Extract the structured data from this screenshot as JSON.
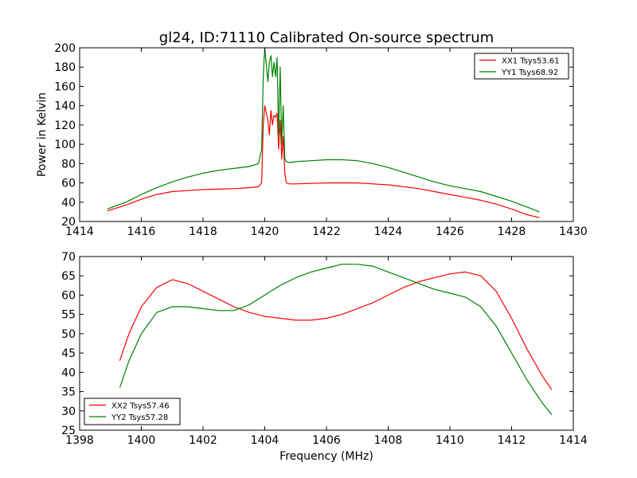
{
  "chart_data": [
    {
      "type": "line",
      "title": "gl24, ID:71110 Calibrated On-source spectrum",
      "xlabel": "",
      "ylabel": "Power in Kelvin",
      "xlim": [
        1414,
        1430
      ],
      "ylim": [
        20,
        200
      ],
      "xticks": [
        1414,
        1416,
        1418,
        1420,
        1422,
        1424,
        1426,
        1428,
        1430
      ],
      "yticks": [
        20,
        40,
        60,
        80,
        100,
        120,
        140,
        160,
        180,
        200
      ],
      "grid": false,
      "legend_position": "top-right",
      "series": [
        {
          "name": "XX1 Tsys53.61",
          "color": "#ff0000",
          "x": [
            1414.9,
            1415.5,
            1416.0,
            1416.5,
            1417.0,
            1417.5,
            1418.0,
            1418.5,
            1419.0,
            1419.5,
            1419.8,
            1419.9,
            1419.95,
            1420.0,
            1420.1,
            1420.15,
            1420.2,
            1420.25,
            1420.3,
            1420.35,
            1420.4,
            1420.45,
            1420.5,
            1420.55,
            1420.6,
            1420.65,
            1420.7,
            1420.8,
            1421.0,
            1421.5,
            1422.0,
            1422.5,
            1423.0,
            1423.5,
            1424.0,
            1424.5,
            1425.0,
            1425.5,
            1426.0,
            1426.5,
            1427.0,
            1427.5,
            1428.0,
            1428.5,
            1428.9
          ],
          "y": [
            31,
            37,
            43,
            48,
            51,
            52,
            53,
            53.5,
            54,
            55,
            56,
            60,
            120,
            140,
            125,
            110,
            135,
            120,
            130,
            128,
            132,
            95,
            125,
            85,
            108,
            70,
            60,
            59,
            59,
            59.5,
            60,
            60,
            60,
            59,
            58,
            56,
            54,
            51,
            48,
            45,
            42,
            38,
            33,
            27,
            24
          ]
        },
        {
          "name": "YY1 Tsys68.92",
          "color": "#008000",
          "x": [
            1414.9,
            1415.5,
            1416.0,
            1416.5,
            1417.0,
            1417.5,
            1418.0,
            1418.5,
            1419.0,
            1419.5,
            1419.8,
            1419.9,
            1419.95,
            1420.0,
            1420.1,
            1420.15,
            1420.2,
            1420.25,
            1420.3,
            1420.35,
            1420.4,
            1420.45,
            1420.5,
            1420.55,
            1420.6,
            1420.65,
            1420.7,
            1420.8,
            1421.0,
            1421.5,
            1422.0,
            1422.5,
            1423.0,
            1423.5,
            1424.0,
            1424.5,
            1425.0,
            1425.5,
            1426.0,
            1426.5,
            1427.0,
            1427.5,
            1428.0,
            1428.5,
            1428.9
          ],
          "y": [
            33,
            40,
            48,
            55,
            61,
            66,
            70,
            73,
            75,
            77,
            80,
            95,
            170,
            200,
            165,
            185,
            192,
            170,
            185,
            170,
            190,
            110,
            180,
            100,
            140,
            85,
            82,
            81,
            82,
            83,
            84,
            84,
            83,
            80,
            76,
            71,
            66,
            61,
            57,
            54,
            51,
            46,
            41,
            35,
            30
          ]
        }
      ]
    },
    {
      "type": "line",
      "title": "",
      "xlabel": "Frequency (MHz)",
      "ylabel": "",
      "xlim": [
        1398,
        1414
      ],
      "ylim": [
        25,
        70
      ],
      "xticks": [
        1398,
        1400,
        1402,
        1404,
        1406,
        1408,
        1410,
        1412,
        1414
      ],
      "yticks": [
        25,
        30,
        35,
        40,
        45,
        50,
        55,
        60,
        65,
        70
      ],
      "grid": false,
      "legend_position": "bottom-left",
      "series": [
        {
          "name": "XX2 Tsys57.46",
          "color": "#ff0000",
          "x": [
            1399.3,
            1399.6,
            1400.0,
            1400.5,
            1401.0,
            1401.5,
            1402.0,
            1402.5,
            1403.0,
            1403.5,
            1404.0,
            1404.5,
            1405.0,
            1405.5,
            1406.0,
            1406.5,
            1407.0,
            1407.5,
            1408.0,
            1408.5,
            1409.0,
            1409.5,
            1410.0,
            1410.5,
            1411.0,
            1411.5,
            1412.0,
            1412.5,
            1413.0,
            1413.3
          ],
          "y": [
            43,
            50,
            57,
            62,
            64,
            63,
            61,
            59,
            57,
            55.5,
            54.5,
            54,
            53.5,
            53.5,
            54,
            55,
            56.5,
            58,
            60,
            62,
            63.5,
            64.5,
            65.5,
            66,
            65,
            61,
            54,
            46,
            39,
            35.5
          ]
        },
        {
          "name": "YY2 Tsys57.28",
          "color": "#008000",
          "x": [
            1399.3,
            1399.6,
            1400.0,
            1400.5,
            1401.0,
            1401.5,
            1402.0,
            1402.5,
            1403.0,
            1403.5,
            1404.0,
            1404.5,
            1405.0,
            1405.5,
            1406.0,
            1406.5,
            1407.0,
            1407.5,
            1408.0,
            1408.5,
            1409.0,
            1409.5,
            1410.0,
            1410.5,
            1411.0,
            1411.5,
            1412.0,
            1412.5,
            1413.0,
            1413.3
          ],
          "y": [
            36,
            43,
            50,
            55.5,
            57,
            57,
            56.5,
            56,
            56,
            57.5,
            60,
            62.5,
            64.5,
            66,
            67,
            68,
            68,
            67.5,
            66,
            64.5,
            63,
            61.5,
            60.5,
            59.5,
            57,
            52,
            45,
            38,
            32,
            29
          ]
        }
      ]
    }
  ]
}
